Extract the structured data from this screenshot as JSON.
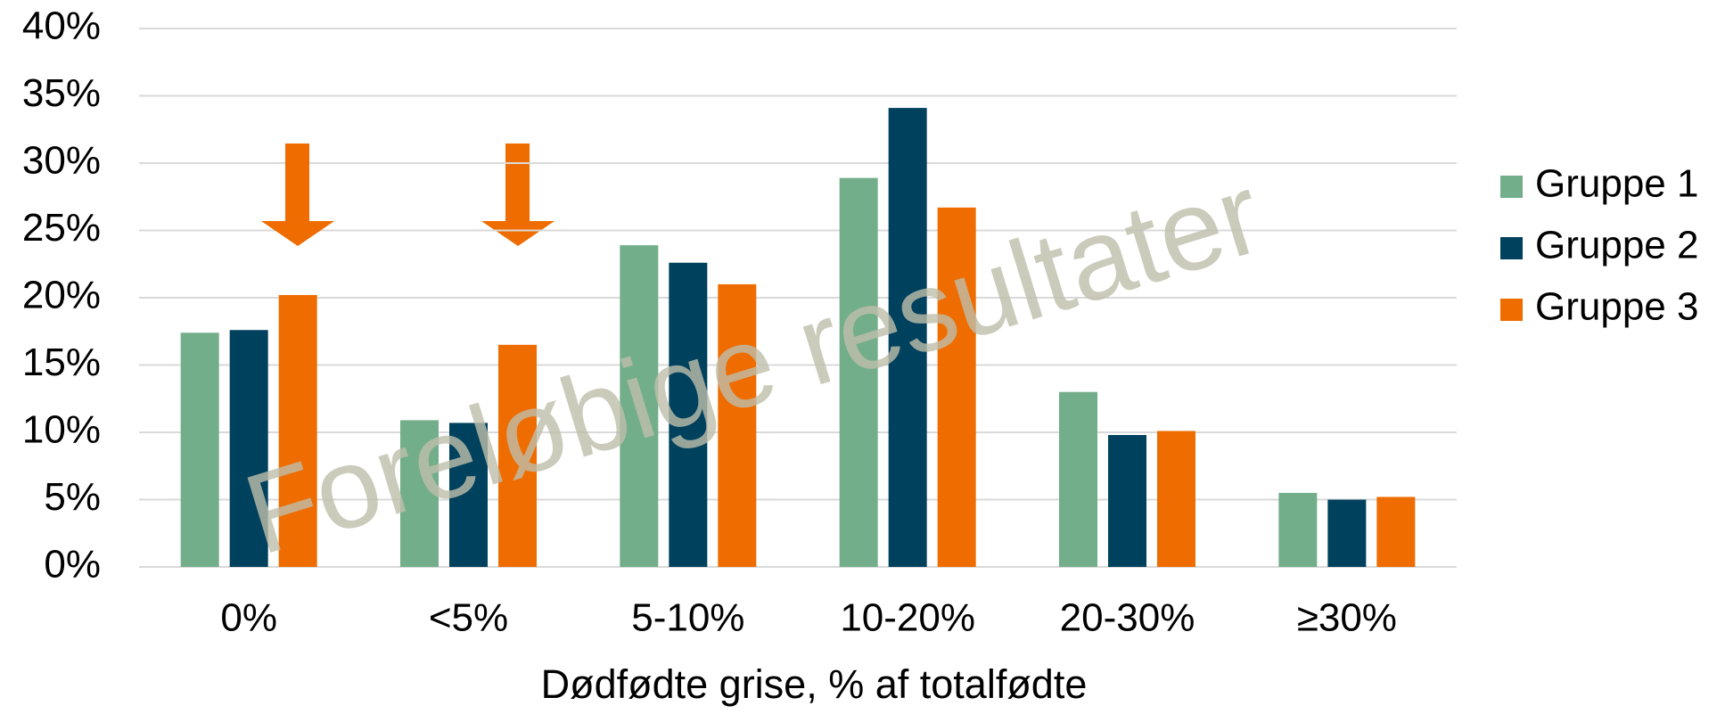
{
  "chart_data": {
    "type": "bar",
    "x_label": "Dødfødte grise, % af totalfødte",
    "annotation": "Foreløbige resultater",
    "categories": [
      "0%",
      "<5%",
      "5-10%",
      "10-20%",
      "20-30%",
      "≥30%"
    ],
    "series": [
      {
        "name": "Gruppe 1",
        "color": "#73ae8a",
        "values": [
          17.4,
          10.9,
          23.9,
          28.9,
          13.0,
          5.5
        ]
      },
      {
        "name": "Gruppe 2",
        "color": "#00415e",
        "values": [
          17.6,
          10.7,
          22.6,
          34.1,
          9.8,
          5.0
        ]
      },
      {
        "name": "Gruppe 3",
        "color": "#ef6c00",
        "values": [
          20.2,
          16.5,
          21.0,
          26.7,
          10.1,
          5.2
        ]
      }
    ],
    "ylim": [
      0,
      40
    ],
    "yticks": [
      {
        "value": 0,
        "label": "0%"
      },
      {
        "value": 5,
        "label": "5%"
      },
      {
        "value": 10,
        "label": "10%"
      },
      {
        "value": 15,
        "label": "15%"
      },
      {
        "value": 20,
        "label": "20%"
      },
      {
        "value": 25,
        "label": "25%"
      },
      {
        "value": 30,
        "label": "30%"
      },
      {
        "value": 35,
        "label": "35%"
      },
      {
        "value": 40,
        "label": "40%"
      }
    ],
    "grid": true,
    "legend": "right"
  }
}
